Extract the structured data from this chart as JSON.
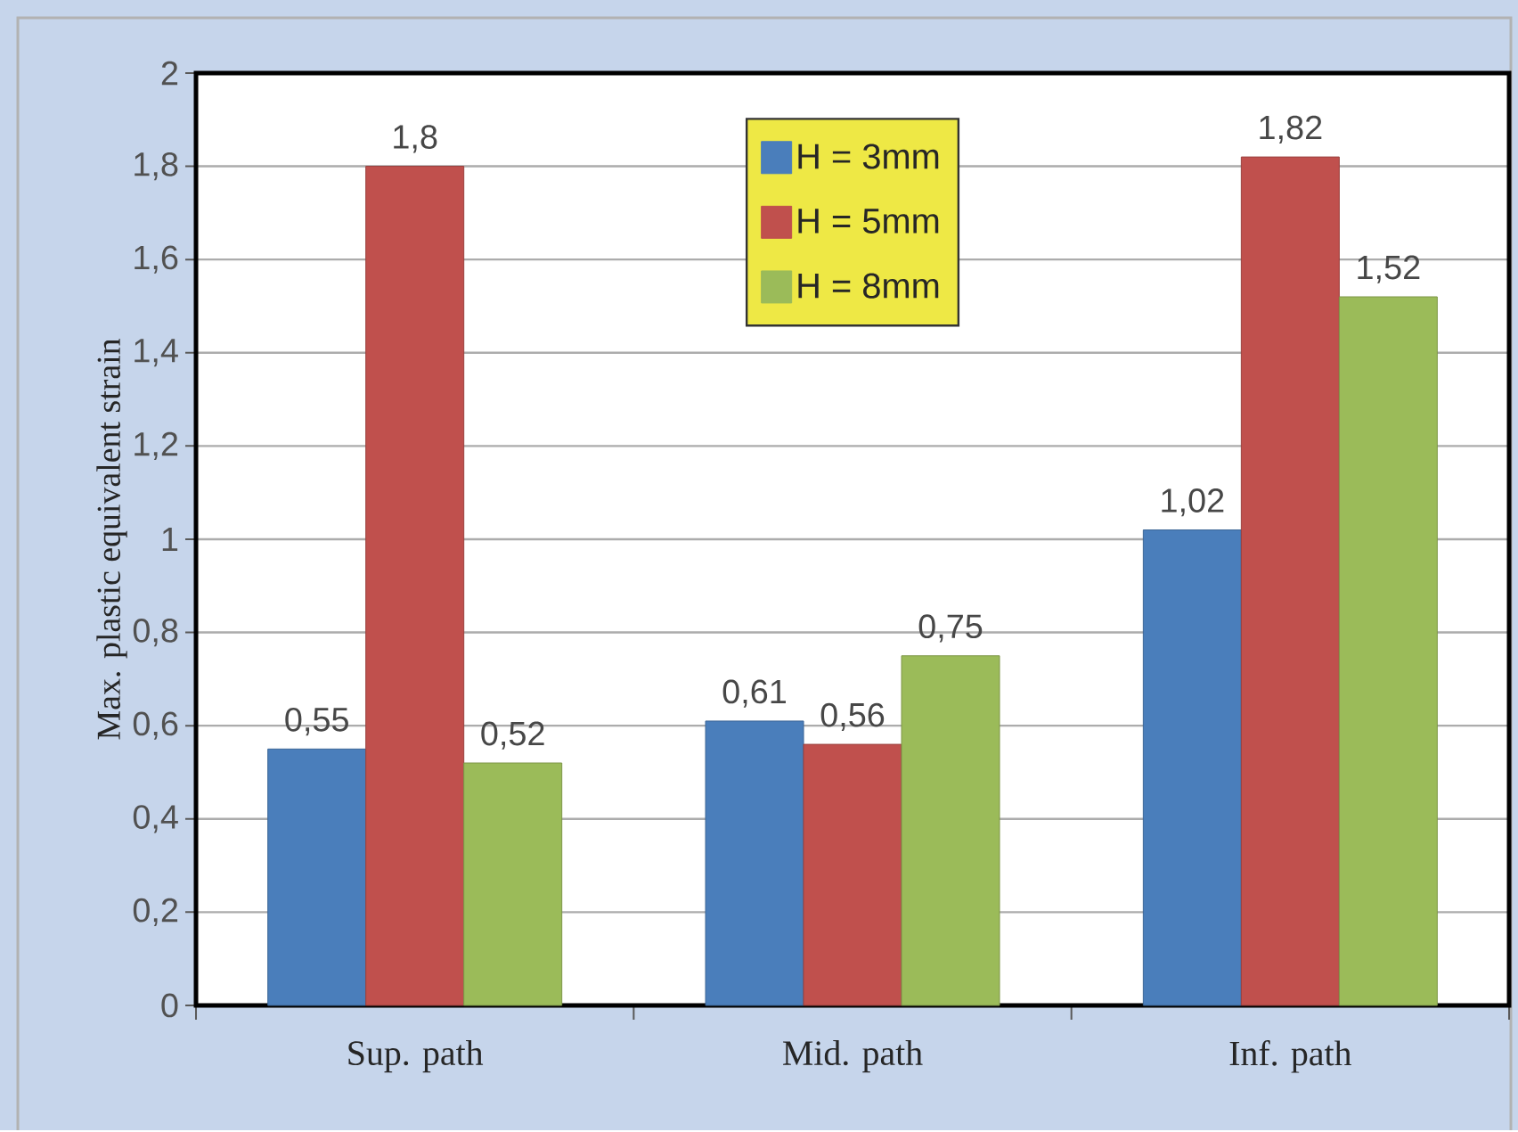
{
  "chart_data": {
    "type": "bar",
    "ylabel": "Max. plastic equivalent strain",
    "categories": [
      "Sup. path",
      "Mid. path",
      "Inf. path"
    ],
    "series": [
      {
        "name": "H = 3mm",
        "color": "#4a7ebb",
        "values": [
          0.55,
          0.61,
          1.02
        ],
        "value_labels": [
          "0,55",
          "0,61",
          "1,02"
        ]
      },
      {
        "name": "H = 5mm",
        "color": "#c0504d",
        "values": [
          1.8,
          0.56,
          1.82
        ],
        "value_labels": [
          "1,8",
          "0,56",
          "1,82"
        ]
      },
      {
        "name": "H = 8mm",
        "color": "#9bbb59",
        "values": [
          0.52,
          0.75,
          1.52
        ],
        "value_labels": [
          "0,52",
          "0,75",
          "1,52"
        ]
      }
    ],
    "ylim": [
      0,
      2
    ],
    "yticks": [
      0,
      {
        "value": 0.2,
        "label": "0,2"
      },
      {
        "value": 0.4,
        "label": "0,4"
      },
      {
        "value": 0.6,
        "label": "0,6"
      },
      {
        "value": 0.8,
        "label": "0,8"
      },
      1,
      {
        "value": 1.2,
        "label": "1,2"
      },
      {
        "value": 1.4,
        "label": "1,4"
      },
      {
        "value": 1.6,
        "label": "1,6"
      },
      {
        "value": 1.8,
        "label": "1,8"
      },
      2
    ],
    "grid": "y",
    "legend": "top"
  }
}
